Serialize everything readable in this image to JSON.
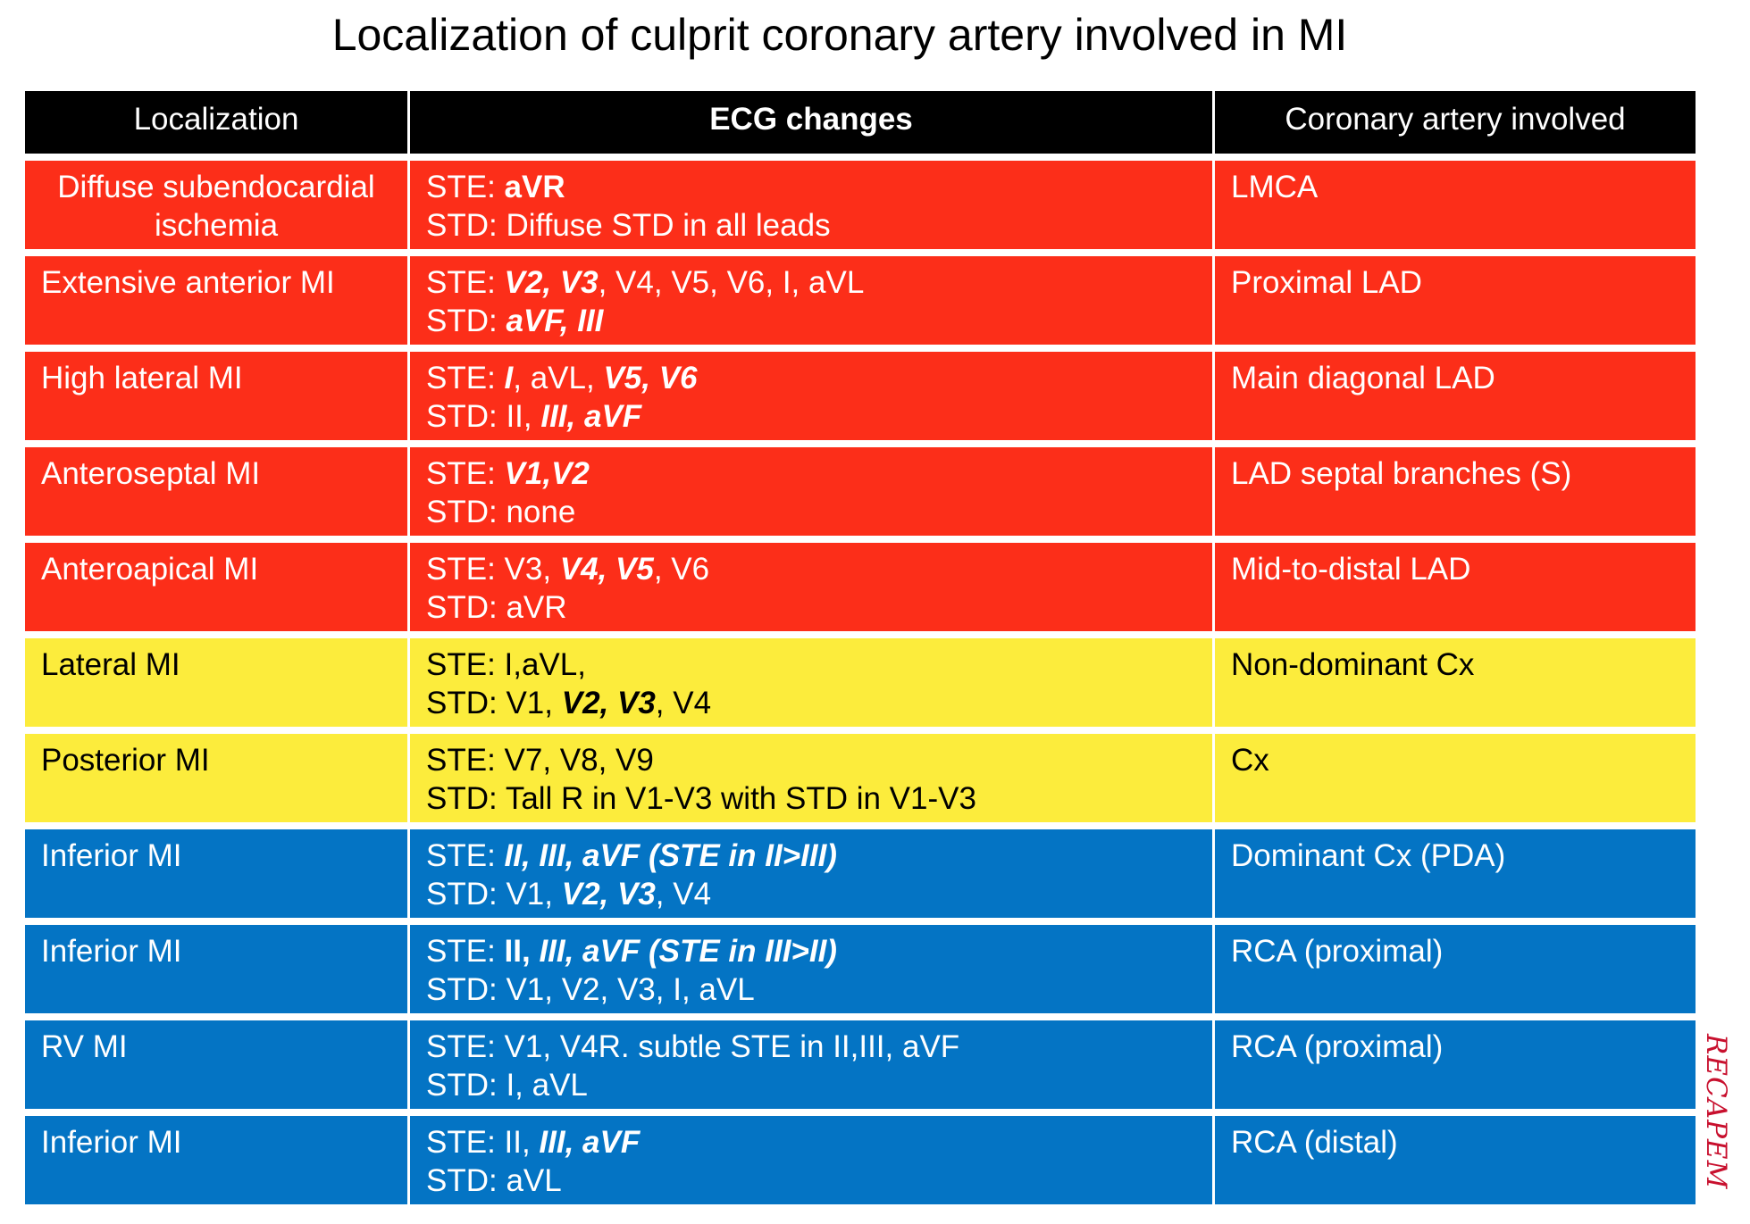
{
  "title": "Localization of culprit coronary artery involved in MI",
  "table": {
    "headers": [
      "Localization",
      "ECG changes",
      "Coronary artery involved"
    ],
    "rows": [
      {
        "color": "#fc2e19",
        "localization": "Diffuse subendocardial ischemia",
        "localization_lines": [
          "Diffuse subendocardial",
          "ischemia"
        ],
        "ste": [
          {
            "t": "STE: ",
            "s": "n"
          },
          {
            "t": "aVR",
            "s": "b"
          }
        ],
        "std": [
          {
            "t": "STD: Diffuse STD in all leads",
            "s": "n"
          }
        ],
        "artery": "LMCA"
      },
      {
        "color": "#fc2e19",
        "localization": "Extensive anterior MI",
        "ste": [
          {
            "t": "STE: ",
            "s": "n"
          },
          {
            "t": "V2, V3",
            "s": "bi"
          },
          {
            "t": ", V4, V5, V6, I, aVL",
            "s": "n"
          }
        ],
        "std": [
          {
            "t": "STD: ",
            "s": "n"
          },
          {
            "t": "aVF, III",
            "s": "bi"
          }
        ],
        "artery": "Proximal LAD"
      },
      {
        "color": "#fc2e19",
        "localization": "High lateral MI",
        "ste": [
          {
            "t": "STE: ",
            "s": "n"
          },
          {
            "t": "I",
            "s": "bi"
          },
          {
            "t": ", aVL, ",
            "s": "n"
          },
          {
            "t": "V5, V6",
            "s": "bi"
          }
        ],
        "std": [
          {
            "t": "STD: II, ",
            "s": "n"
          },
          {
            "t": "III, aVF",
            "s": "bi"
          }
        ],
        "artery": "Main diagonal LAD"
      },
      {
        "color": "#fc2e19",
        "localization": "Anteroseptal MI",
        "ste": [
          {
            "t": "STE: ",
            "s": "n"
          },
          {
            "t": "V1,V2",
            "s": "bi"
          }
        ],
        "std": [
          {
            "t": "STD: none",
            "s": "n"
          }
        ],
        "artery": "LAD septal branches (S)"
      },
      {
        "color": "#fc2e19",
        "localization": "Anteroapical MI",
        "ste": [
          {
            "t": "STE: V3, ",
            "s": "n"
          },
          {
            "t": "V4, V5",
            "s": "bi"
          },
          {
            "t": ", V6",
            "s": "n"
          }
        ],
        "std": [
          {
            "t": "STD: aVR",
            "s": "n"
          }
        ],
        "artery": "Mid-to-distal LAD"
      },
      {
        "color": "#fcec3c",
        "localization": "Lateral MI",
        "ste": [
          {
            "t": "STE: I,aVL,",
            "s": "n"
          }
        ],
        "std": [
          {
            "t": "STD: V1, ",
            "s": "n"
          },
          {
            "t": "V2, V3",
            "s": "bi"
          },
          {
            "t": ", V4",
            "s": "n"
          }
        ],
        "artery": "Non-dominant Cx"
      },
      {
        "color": "#fcec3c",
        "localization": "Posterior MI",
        "ste": [
          {
            "t": "STE: V7, V8, V9",
            "s": "n"
          }
        ],
        "std": [
          {
            "t": "STD: Tall R in V1-V3 with STD in V1-V3",
            "s": "n"
          }
        ],
        "artery": "Cx"
      },
      {
        "color": "#0474c4",
        "localization": "Inferior MI",
        "ste": [
          {
            "t": "STE: ",
            "s": "n"
          },
          {
            "t": "II, III, aVF  (STE in II>III)",
            "s": "bi"
          }
        ],
        "std": [
          {
            "t": "STD: V1, ",
            "s": "n"
          },
          {
            "t": "V2, V3",
            "s": "bi"
          },
          {
            "t": ", V4",
            "s": "n"
          }
        ],
        "artery": "Dominant Cx (PDA)"
      },
      {
        "color": "#0474c4",
        "localization": "Inferior MI",
        "ste": [
          {
            "t": "STE: ",
            "s": "n"
          },
          {
            "t": "II, ",
            "s": "b"
          },
          {
            "t": "III, aVF  (STE in III>II)",
            "s": "bi"
          }
        ],
        "std": [
          {
            "t": "STD: V1, V2, V3, I, aVL",
            "s": "n"
          }
        ],
        "artery": "RCA (proximal)"
      },
      {
        "color": "#0474c4",
        "localization": "RV MI",
        "ste": [
          {
            "t": "STE: V1, V4R. subtle STE in II,III, aVF",
            "s": "n"
          }
        ],
        "std": [
          {
            "t": "STD: I, aVL",
            "s": "n"
          }
        ],
        "artery": "RCA (proximal)"
      },
      {
        "color": "#0474c4",
        "localization": "Inferior MI",
        "ste": [
          {
            "t": "STE: II, ",
            "s": "n"
          },
          {
            "t": "III, aVF",
            "s": "bi"
          }
        ],
        "std": [
          {
            "t": "STD: aVL",
            "s": "n"
          }
        ],
        "artery": "RCA (distal)"
      }
    ]
  },
  "watermark": "RECAPEM"
}
